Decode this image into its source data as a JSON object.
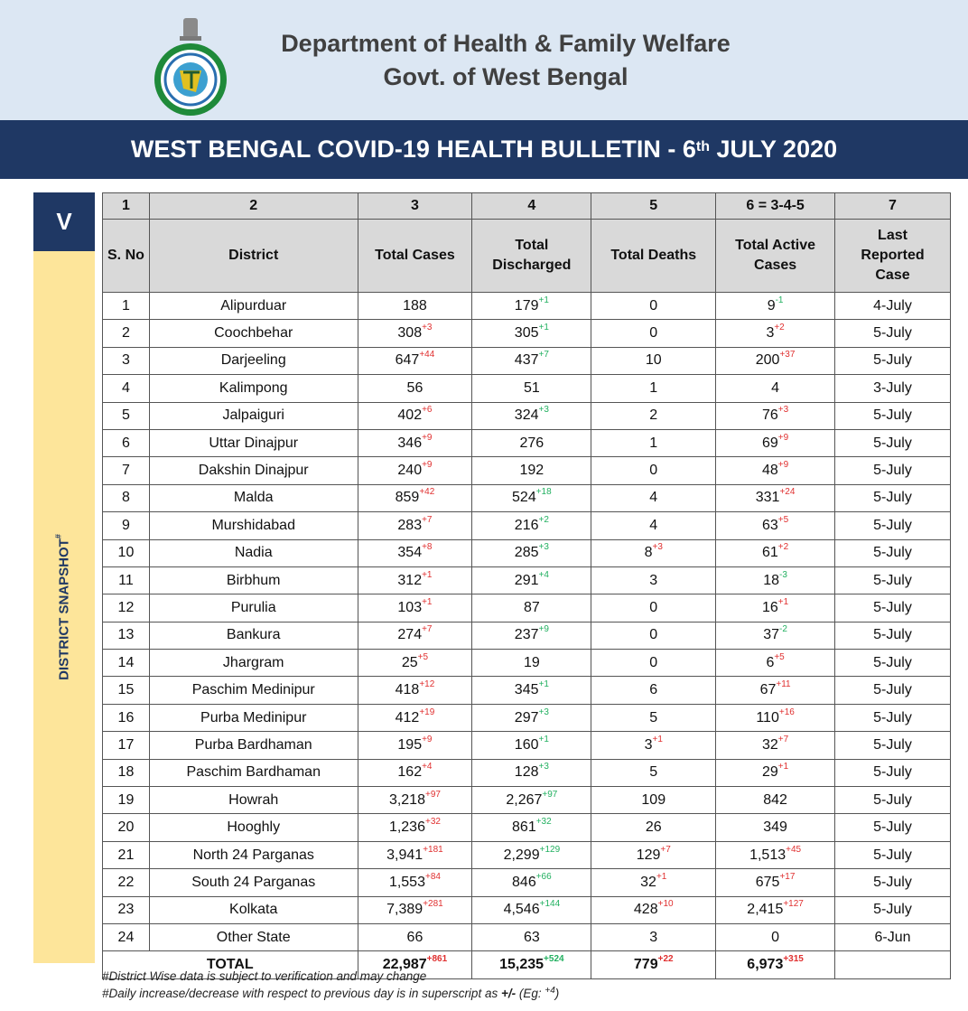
{
  "header": {
    "dept_line1": "Department of Health & Family Welfare",
    "dept_line2": "Govt. of West Bengal",
    "logo_name": "Government of West Bengal emblem",
    "bulletin_prefix": "WEST BENGAL COVID-19 HEALTH BULLETIN -  6",
    "bulletin_sup": "th",
    "bulletin_suffix": " JULY 2020"
  },
  "section": {
    "number": "V",
    "label": "DISTRICT SNAPSHOT",
    "label_sup": "#"
  },
  "colors": {
    "navy": "#1f3864",
    "light_blue": "#dce7f3",
    "yellow": "#fde59a",
    "increase": "#e03030",
    "decrease_or_discharged": "#22b060"
  },
  "table": {
    "col_numbers": [
      "1",
      "2",
      "3",
      "4",
      "5",
      "6 = 3-4-5",
      "7"
    ],
    "columns": [
      "S. No",
      "District",
      "Total Cases",
      "Total Discharged",
      "Total Deaths",
      "Total Active Cases",
      "Last Reported Case"
    ],
    "rows": [
      [
        "1",
        "Alipurduar",
        [
          "188",
          ""
        ],
        [
          "179",
          "+1"
        ],
        [
          "0",
          ""
        ],
        [
          "9",
          "-1"
        ],
        "4-July"
      ],
      [
        "2",
        "Coochbehar",
        [
          "308",
          "+3"
        ],
        [
          "305",
          "+1"
        ],
        [
          "0",
          ""
        ],
        [
          "3",
          "+2"
        ],
        "5-July"
      ],
      [
        "3",
        "Darjeeling",
        [
          "647",
          "+44"
        ],
        [
          "437",
          "+7"
        ],
        [
          "10",
          ""
        ],
        [
          "200",
          "+37"
        ],
        "5-July"
      ],
      [
        "4",
        "Kalimpong",
        [
          "56",
          ""
        ],
        [
          "51",
          ""
        ],
        [
          "1",
          ""
        ],
        [
          "4",
          ""
        ],
        "3-July"
      ],
      [
        "5",
        "Jalpaiguri",
        [
          "402",
          "+6"
        ],
        [
          "324",
          "+3"
        ],
        [
          "2",
          ""
        ],
        [
          "76",
          "+3"
        ],
        "5-July"
      ],
      [
        "6",
        "Uttar Dinajpur",
        [
          "346",
          "+9"
        ],
        [
          "276",
          ""
        ],
        [
          "1",
          ""
        ],
        [
          "69",
          "+9"
        ],
        "5-July"
      ],
      [
        "7",
        "Dakshin Dinajpur",
        [
          "240",
          "+9"
        ],
        [
          "192",
          ""
        ],
        [
          "0",
          ""
        ],
        [
          "48",
          "+9"
        ],
        "5-July"
      ],
      [
        "8",
        "Malda",
        [
          "859",
          "+42"
        ],
        [
          "524",
          "+18"
        ],
        [
          "4",
          ""
        ],
        [
          "331",
          "+24"
        ],
        "5-July"
      ],
      [
        "9",
        "Murshidabad",
        [
          "283",
          "+7"
        ],
        [
          "216",
          "+2"
        ],
        [
          "4",
          ""
        ],
        [
          "63",
          "+5"
        ],
        "5-July"
      ],
      [
        "10",
        "Nadia",
        [
          "354",
          "+8"
        ],
        [
          "285",
          "+3"
        ],
        [
          "8",
          "+3"
        ],
        [
          "61",
          "+2"
        ],
        "5-July"
      ],
      [
        "11",
        "Birbhum",
        [
          "312",
          "+1"
        ],
        [
          "291",
          "+4"
        ],
        [
          "3",
          ""
        ],
        [
          "18",
          "-3"
        ],
        "5-July"
      ],
      [
        "12",
        "Purulia",
        [
          "103",
          "+1"
        ],
        [
          "87",
          ""
        ],
        [
          "0",
          ""
        ],
        [
          "16",
          "+1"
        ],
        "5-July"
      ],
      [
        "13",
        "Bankura",
        [
          "274",
          "+7"
        ],
        [
          "237",
          "+9"
        ],
        [
          "0",
          ""
        ],
        [
          "37",
          "-2"
        ],
        "5-July"
      ],
      [
        "14",
        "Jhargram",
        [
          "25",
          "+5"
        ],
        [
          "19",
          ""
        ],
        [
          "0",
          ""
        ],
        [
          "6",
          "+5"
        ],
        "5-July"
      ],
      [
        "15",
        "Paschim Medinipur",
        [
          "418",
          "+12"
        ],
        [
          "345",
          "+1"
        ],
        [
          "6",
          ""
        ],
        [
          "67",
          "+11"
        ],
        "5-July"
      ],
      [
        "16",
        "Purba Medinipur",
        [
          "412",
          "+19"
        ],
        [
          "297",
          "+3"
        ],
        [
          "5",
          ""
        ],
        [
          "110",
          "+16"
        ],
        "5-July"
      ],
      [
        "17",
        "Purba Bardhaman",
        [
          "195",
          "+9"
        ],
        [
          "160",
          "+1"
        ],
        [
          "3",
          "+1"
        ],
        [
          "32",
          "+7"
        ],
        "5-July"
      ],
      [
        "18",
        "Paschim Bardhaman",
        [
          "162",
          "+4"
        ],
        [
          "128",
          "+3"
        ],
        [
          "5",
          ""
        ],
        [
          "29",
          "+1"
        ],
        "5-July"
      ],
      [
        "19",
        "Howrah",
        [
          "3,218",
          "+97"
        ],
        [
          "2,267",
          "+97"
        ],
        [
          "109",
          ""
        ],
        [
          "842",
          ""
        ],
        "5-July"
      ],
      [
        "20",
        "Hooghly",
        [
          "1,236",
          "+32"
        ],
        [
          "861",
          "+32"
        ],
        [
          "26",
          ""
        ],
        [
          "349",
          ""
        ],
        "5-July"
      ],
      [
        "21",
        "North 24 Parganas",
        [
          "3,941",
          "+181"
        ],
        [
          "2,299",
          "+129"
        ],
        [
          "129",
          "+7"
        ],
        [
          "1,513",
          "+45"
        ],
        "5-July"
      ],
      [
        "22",
        "South 24 Parganas",
        [
          "1,553",
          "+84"
        ],
        [
          "846",
          "+66"
        ],
        [
          "32",
          "+1"
        ],
        [
          "675",
          "+17"
        ],
        "5-July"
      ],
      [
        "23",
        "Kolkata",
        [
          "7,389",
          "+281"
        ],
        [
          "4,546",
          "+144"
        ],
        [
          "428",
          "+10"
        ],
        [
          "2,415",
          "+127"
        ],
        "5-July"
      ],
      [
        "24",
        "Other State",
        [
          "66",
          ""
        ],
        [
          "63",
          ""
        ],
        [
          "3",
          ""
        ],
        [
          "0",
          ""
        ],
        "6-Jun"
      ]
    ],
    "total": {
      "label": "TOTAL",
      "cases": [
        "22,987",
        "+861"
      ],
      "discharged": [
        "15,235",
        "+524"
      ],
      "deaths": [
        "779",
        "+22"
      ],
      "active": [
        "6,973",
        "+315"
      ]
    }
  },
  "notes": {
    "note1": "#District Wise data is subject to verification and may change",
    "note2_prefix": "#Daily increase/decrease with respect to previous day is in superscript as ",
    "note2_bold": "+/-",
    "note2_eg": " (Eg: ",
    "note2_eg_sup": "+4",
    "note2_end": ")"
  }
}
